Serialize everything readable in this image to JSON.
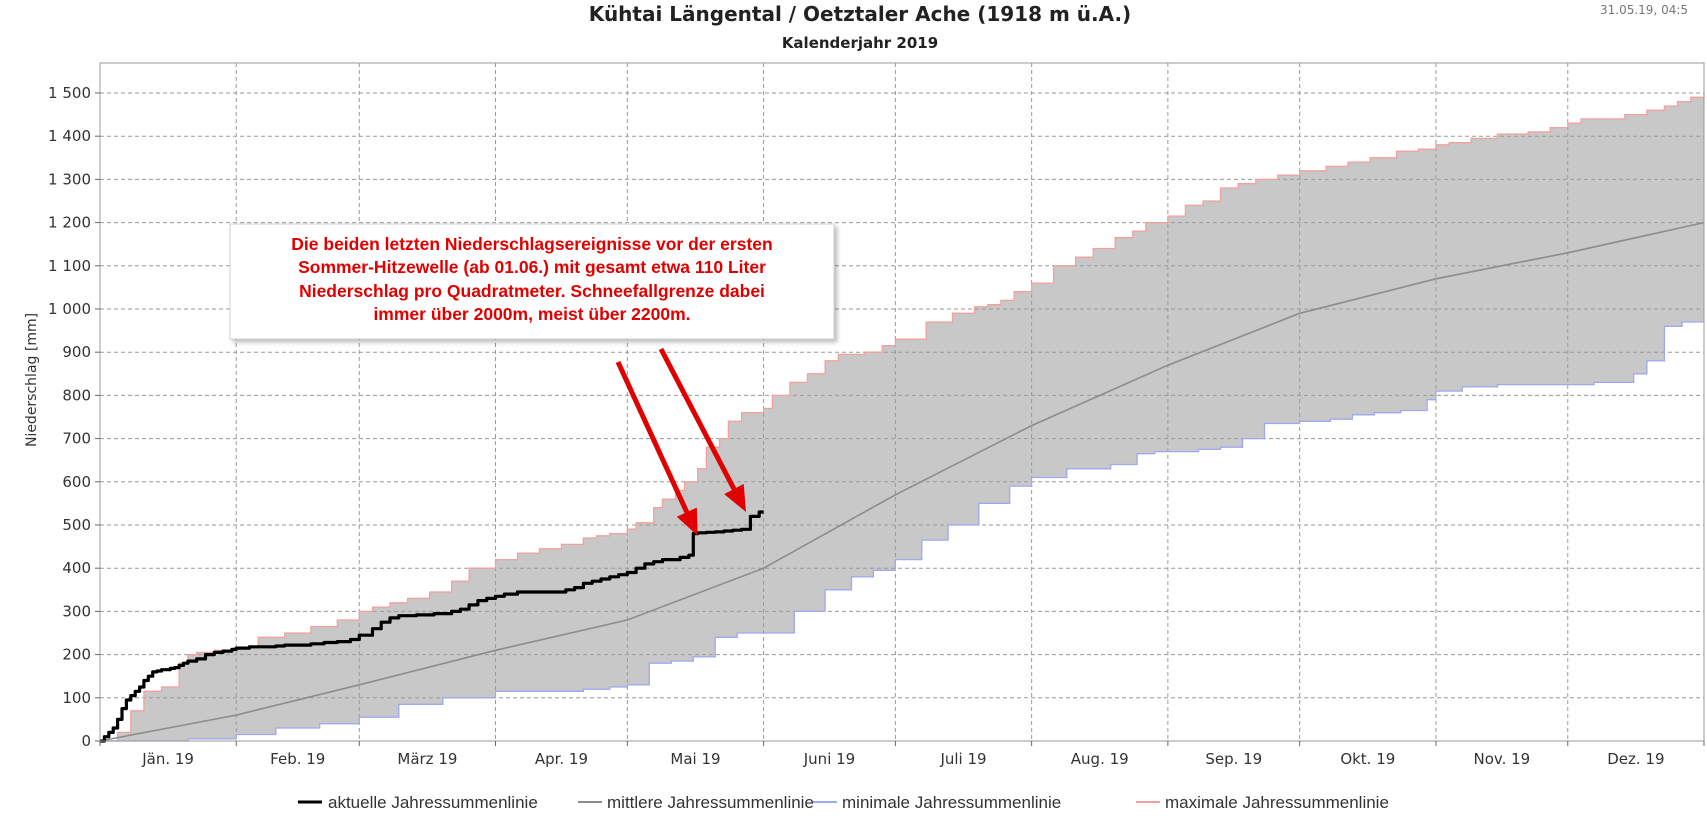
{
  "chart_data": {
    "type": "line",
    "title": "Kühtai Längental / Oetztaler Ache (1918 m ü.A.)",
    "subtitle": "Kalenderjahr 2019",
    "timestamp": "31.05.19, 04:5",
    "ylabel": "Niederschlag [mm]",
    "xlabel": "",
    "xlim": [
      0,
      365
    ],
    "ylim": [
      0,
      1500
    ],
    "grid": true,
    "y_ticks": [
      0,
      100,
      200,
      300,
      400,
      500,
      600,
      700,
      800,
      900,
      1000,
      1100,
      1200,
      1300,
      1400,
      1500
    ],
    "y_tick_labels": [
      "0",
      "100",
      "200",
      "300",
      "400",
      "500",
      "600",
      "700",
      "800",
      "900",
      "1 000",
      "1 100",
      "1 200",
      "1 300",
      "1 400",
      "1 500"
    ],
    "x_boundaries": [
      0,
      31,
      59,
      90,
      120,
      151,
      181,
      212,
      243,
      273,
      304,
      334,
      365
    ],
    "months": [
      "Jän. 19",
      "Feb. 19",
      "März 19",
      "Apr. 19",
      "Mai 19",
      "Juni 19",
      "Juli 19",
      "Aug. 19",
      "Sep. 19",
      "Okt. 19",
      "Nov. 19",
      "Dez. 19"
    ],
    "series": [
      {
        "name": "maximale Jahressummenlinie",
        "color": "#f2a0a0",
        "x": [
          0,
          4,
          7,
          10,
          14,
          18,
          20,
          22,
          26,
          31,
          36,
          42,
          48,
          54,
          59,
          62,
          66,
          70,
          75,
          80,
          84,
          90,
          95,
          100,
          105,
          110,
          113,
          116,
          120,
          122,
          126,
          128,
          131,
          133,
          136,
          138,
          141,
          143,
          146,
          151,
          153,
          157,
          161,
          165,
          168,
          174,
          178,
          181,
          188,
          194,
          199,
          202,
          205,
          208,
          212,
          217,
          222,
          226,
          231,
          235,
          238,
          243,
          247,
          251,
          255,
          259,
          263,
          268,
          273,
          279,
          284,
          289,
          295,
          300,
          304,
          307,
          312,
          318,
          325,
          330,
          334,
          337,
          341,
          347,
          352,
          356,
          359,
          362,
          365
        ],
        "y": [
          0,
          20,
          70,
          115,
          125,
          180,
          200,
          205,
          210,
          215,
          240,
          250,
          265,
          280,
          300,
          310,
          320,
          330,
          345,
          370,
          400,
          420,
          435,
          445,
          455,
          470,
          475,
          480,
          490,
          505,
          540,
          560,
          580,
          600,
          630,
          680,
          700,
          740,
          760,
          770,
          800,
          830,
          850,
          880,
          895,
          900,
          915,
          930,
          970,
          990,
          1005,
          1010,
          1020,
          1040,
          1060,
          1100,
          1120,
          1140,
          1165,
          1180,
          1200,
          1215,
          1240,
          1250,
          1280,
          1290,
          1300,
          1310,
          1320,
          1330,
          1340,
          1350,
          1365,
          1370,
          1380,
          1385,
          1395,
          1405,
          1410,
          1420,
          1430,
          1440,
          1440,
          1450,
          1460,
          1470,
          1480,
          1490,
          1500
        ]
      },
      {
        "name": "minimale Jahressummenlinie",
        "color": "#a0a8f0",
        "x": [
          0,
          10,
          20,
          31,
          40,
          50,
          59,
          68,
          78,
          90,
          100,
          110,
          116,
          120,
          125,
          130,
          135,
          140,
          145,
          151,
          158,
          165,
          171,
          176,
          181,
          187,
          193,
          200,
          207,
          212,
          220,
          230,
          236,
          240,
          243,
          250,
          255,
          260,
          265,
          273,
          280,
          285,
          290,
          296,
          302,
          304,
          310,
          318,
          325,
          334,
          340,
          345,
          349,
          352,
          356,
          360,
          365
        ],
        "y": [
          0,
          0,
          5,
          15,
          30,
          40,
          55,
          85,
          100,
          115,
          115,
          120,
          125,
          130,
          180,
          185,
          195,
          240,
          250,
          250,
          300,
          350,
          380,
          395,
          420,
          465,
          500,
          550,
          590,
          610,
          630,
          640,
          665,
          670,
          670,
          675,
          680,
          700,
          735,
          740,
          745,
          755,
          760,
          765,
          790,
          810,
          820,
          825,
          825,
          825,
          830,
          830,
          850,
          880,
          960,
          970,
          970
        ]
      },
      {
        "name": "mittlere Jahressummenlinie",
        "color": "#8c8c8c",
        "x": [
          0,
          31,
          59,
          90,
          120,
          151,
          181,
          212,
          243,
          273,
          304,
          334,
          365
        ],
        "y": [
          0,
          60,
          130,
          210,
          280,
          400,
          570,
          730,
          870,
          990,
          1070,
          1130,
          1200
        ]
      },
      {
        "name": "aktuelle Jahressummenlinie",
        "color": "#000000",
        "x": [
          0,
          1,
          2,
          3,
          4,
          5,
          6,
          7,
          8,
          9,
          10,
          11,
          12,
          13,
          14,
          15,
          16,
          17,
          18,
          19,
          20,
          22,
          24,
          26,
          28,
          30,
          31,
          34,
          37,
          40,
          42,
          45,
          48,
          51,
          54,
          57,
          59,
          62,
          64,
          66,
          68,
          70,
          72,
          74,
          76,
          78,
          80,
          82,
          84,
          86,
          88,
          90,
          92,
          95,
          98,
          101,
          104,
          106,
          108,
          110,
          112,
          114,
          116,
          118,
          120,
          122,
          124,
          126,
          128,
          130,
          132,
          134,
          135,
          136,
          138,
          140,
          142,
          144,
          146,
          148,
          150,
          151
        ],
        "y": [
          0,
          10,
          20,
          30,
          50,
          75,
          95,
          105,
          115,
          125,
          140,
          150,
          160,
          162,
          165,
          165,
          168,
          170,
          175,
          180,
          185,
          190,
          200,
          205,
          208,
          212,
          215,
          218,
          218,
          220,
          222,
          222,
          225,
          228,
          230,
          235,
          245,
          260,
          275,
          285,
          290,
          290,
          292,
          292,
          295,
          295,
          300,
          305,
          315,
          325,
          330,
          335,
          340,
          345,
          345,
          345,
          345,
          350,
          355,
          365,
          370,
          375,
          380,
          385,
          390,
          400,
          410,
          415,
          420,
          420,
          425,
          430,
          480,
          482,
          483,
          484,
          486,
          488,
          490,
          520,
          530,
          530
        ]
      }
    ],
    "legend": {
      "position": "bottom",
      "labels": [
        "aktuelle Jahressummenlinie",
        "mittlere Jahressummenlinie",
        "minimale Jahressummenlinie",
        "maximale Jahressummenlinie"
      ]
    },
    "annotation": {
      "lines": [
        "Die beiden letzten Niederschlagsereignisse vor der ersten",
        "Sommer-Hitzewelle (ab 01.06.) mit gesamt etwa 110 Liter",
        "Niederschlag pro Quadratmeter. Schneefallgrenze dabei",
        "immer über 2000m, meist über 2200m."
      ],
      "color": "#e00000",
      "arrow_targets": [
        {
          "x": 136,
          "y": 475
        },
        {
          "x": 147,
          "y": 530
        }
      ]
    },
    "band_color": "#c8c8c8"
  }
}
